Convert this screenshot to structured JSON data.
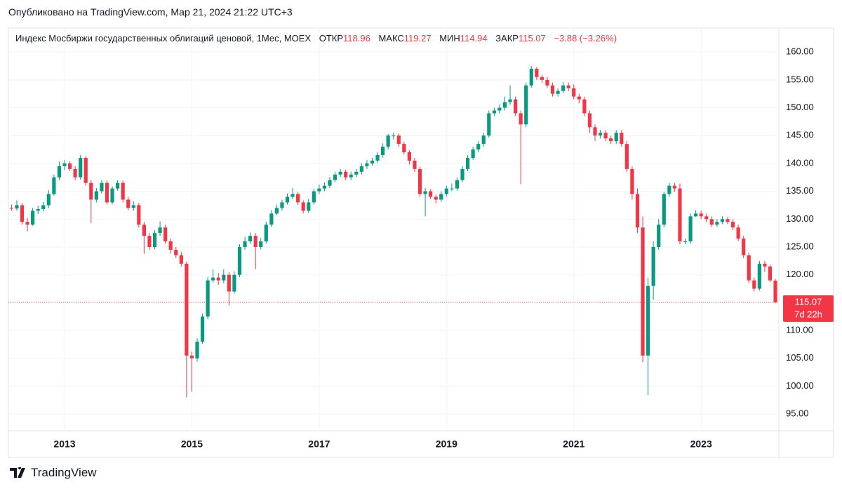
{
  "published": "Опубликовано на TradingView.com, Мар 21, 2024 21:22 UTC+3",
  "brand": "TradingView",
  "chart_data": {
    "type": "candlestick",
    "title": "Индекс Мосбиржи государственных облигаций ценовой, 1Мес, MOEX",
    "legend": {
      "open_label": "ОТКР",
      "high_label": "МАКС",
      "low_label": "МИН",
      "close_label": "ЗАКР",
      "change": "−3.88 (−3.26%)"
    },
    "countdown": "7d 22h",
    "up_color": "#089981",
    "down_color": "#f23645",
    "grid": true,
    "ylim": [
      92,
      164.3
    ],
    "yticks": [
      {
        "value": 95,
        "label": "95.00"
      },
      {
        "value": 100,
        "label": "100.00"
      },
      {
        "value": 105,
        "label": "105.00"
      },
      {
        "value": 110,
        "label": "110.00"
      },
      {
        "value": 115,
        "label": "115.00"
      },
      {
        "value": 120,
        "label": "120.00"
      },
      {
        "value": 125,
        "label": "125.00"
      },
      {
        "value": 130,
        "label": "130.00"
      },
      {
        "value": 135,
        "label": "135.00"
      },
      {
        "value": 140,
        "label": "140.00"
      },
      {
        "value": 145,
        "label": "145.00"
      },
      {
        "value": 150,
        "label": "150.00"
      },
      {
        "value": 155,
        "label": "155.00"
      },
      {
        "value": 160,
        "label": "160.00"
      }
    ],
    "categories": [
      null,
      null,
      null,
      null,
      null,
      null,
      null,
      null,
      null,
      null,
      "2013",
      null,
      null,
      null,
      null,
      null,
      null,
      null,
      null,
      null,
      null,
      null,
      null,
      null,
      null,
      null,
      null,
      null,
      null,
      null,
      null,
      null,
      null,
      null,
      "2015",
      null,
      null,
      null,
      null,
      null,
      null,
      null,
      null,
      null,
      null,
      null,
      null,
      null,
      null,
      null,
      null,
      null,
      null,
      null,
      null,
      null,
      null,
      null,
      "2017",
      null,
      null,
      null,
      null,
      null,
      null,
      null,
      null,
      null,
      null,
      null,
      null,
      null,
      null,
      null,
      null,
      null,
      null,
      null,
      null,
      null,
      null,
      null,
      "2019",
      null,
      null,
      null,
      null,
      null,
      null,
      null,
      null,
      null,
      null,
      null,
      null,
      null,
      null,
      null,
      null,
      null,
      null,
      null,
      null,
      null,
      null,
      null,
      "2021",
      null,
      null,
      null,
      null,
      null,
      null,
      null,
      null,
      null,
      null,
      null,
      null,
      null,
      null,
      null,
      null,
      null,
      null,
      null,
      null,
      null,
      null,
      null,
      "2023",
      null,
      null,
      null,
      null,
      null,
      null,
      null,
      null,
      null,
      null,
      null,
      null,
      null,
      null
    ],
    "open": [
      132.0,
      131.9,
      132.5,
      129.5,
      129.0,
      131.5,
      131.8,
      132.5,
      134.5,
      137.5,
      139.5,
      140.0,
      139.0,
      137.5,
      141.0,
      136.5,
      133.5,
      135.0,
      136.5,
      133.0,
      135.5,
      136.5,
      133.5,
      132.0,
      132.5,
      129.0,
      127.0,
      125.0,
      127.5,
      128.5,
      126.0,
      124.5,
      123.5,
      122.0,
      105.5,
      105.0,
      108.0,
      112.5,
      119.0,
      119.5,
      119.0,
      120.0,
      117.0,
      120.0,
      125.0,
      126.0,
      127.0,
      125.0,
      126.0,
      129.0,
      131.0,
      132.0,
      133.0,
      134.0,
      134.5,
      133.0,
      131.5,
      133.0,
      135.0,
      135.5,
      136.0,
      137.0,
      138.0,
      138.5,
      137.5,
      138.0,
      138.5,
      139.5,
      140.0,
      140.5,
      141.5,
      143.0,
      145.0,
      145.0,
      143.5,
      142.0,
      140.5,
      139.0,
      134.5,
      135.0,
      134.0,
      133.5,
      134.5,
      135.5,
      135.5,
      137.0,
      139.0,
      141.0,
      142.5,
      143.5,
      145.0,
      149.0,
      149.5,
      150.0,
      151.0,
      151.5,
      149.0,
      147.0,
      154.0,
      157.0,
      155.5,
      155.0,
      154.0,
      152.5,
      153.0,
      154.0,
      153.5,
      152.0,
      151.5,
      149.0,
      146.5,
      145.0,
      145.5,
      144.5,
      144.0,
      145.5,
      143.5,
      139.0,
      134.5,
      128.5,
      105.5,
      118.0,
      125.0,
      129.0,
      134.5,
      136.0,
      135.5,
      126.0,
      126.0,
      130.5,
      131.0,
      130.5,
      130.0,
      129.0,
      129.5,
      130.0,
      129.5,
      128.5,
      126.5,
      123.5,
      119.0,
      117.5,
      122.0,
      121.5,
      118.96
    ],
    "high": [
      132.6,
      133.4,
      132.9,
      130.2,
      132.0,
      132.4,
      133.1,
      135.2,
      138.0,
      140.3,
      140.6,
      140.4,
      139.5,
      141.5,
      141.3,
      137.0,
      135.6,
      137.0,
      136.9,
      135.9,
      137.0,
      136.9,
      134.0,
      133.2,
      132.9,
      129.5,
      127.5,
      128.0,
      129.6,
      129.0,
      126.5,
      125.0,
      124.1,
      122.4,
      106.2,
      108.6,
      113.0,
      119.6,
      121.0,
      120.3,
      121.0,
      120.5,
      120.6,
      125.5,
      126.8,
      127.6,
      127.5,
      126.6,
      129.5,
      131.6,
      132.6,
      133.5,
      134.6,
      135.6,
      134.9,
      133.4,
      133.6,
      135.5,
      136.2,
      136.6,
      137.6,
      138.5,
      139.0,
      138.9,
      138.5,
      139.0,
      140.0,
      140.6,
      141.0,
      142.0,
      143.6,
      145.3,
      145.5,
      145.4,
      143.9,
      142.4,
      141.0,
      139.4,
      135.6,
      135.4,
      134.4,
      135.0,
      136.0,
      136.4,
      137.5,
      139.5,
      141.5,
      143.0,
      144.0,
      145.5,
      149.5,
      150.0,
      150.6,
      152.0,
      154.0,
      152.0,
      149.5,
      154.5,
      157.5,
      157.3,
      155.9,
      155.5,
      154.5,
      153.5,
      154.6,
      154.5,
      154.2,
      152.5,
      152.0,
      149.5,
      147.0,
      146.0,
      146.0,
      145.0,
      146.0,
      146.0,
      144.0,
      139.5,
      135.5,
      130.5,
      119.5,
      126.0,
      130.0,
      134.9,
      136.5,
      136.5,
      136.4,
      126.5,
      131.0,
      131.6,
      131.5,
      131.0,
      130.5,
      130.0,
      130.5,
      130.4,
      130.0,
      129.0,
      127.0,
      124.0,
      119.5,
      122.5,
      122.5,
      121.8,
      119.27
    ],
    "low": [
      131.5,
      131.5,
      129.0,
      127.8,
      128.8,
      130.9,
      131.4,
      132.0,
      134.2,
      137.0,
      138.8,
      138.6,
      137.0,
      137.1,
      136.0,
      129.3,
      133.0,
      134.6,
      132.6,
      132.7,
      135.1,
      133.0,
      131.6,
      131.5,
      128.5,
      123.8,
      124.5,
      124.6,
      127.0,
      125.6,
      123.8,
      123.0,
      121.5,
      98.0,
      99.0,
      104.4,
      107.6,
      112.0,
      118.6,
      118.2,
      118.5,
      114.5,
      116.6,
      119.6,
      124.5,
      125.5,
      121.0,
      124.6,
      125.6,
      128.6,
      130.7,
      131.5,
      132.6,
      133.6,
      132.5,
      131.0,
      131.1,
      132.6,
      134.5,
      135.0,
      135.6,
      136.6,
      137.6,
      137.0,
      137.0,
      137.6,
      138.0,
      139.0,
      139.6,
      140.1,
      141.0,
      142.5,
      144.3,
      143.0,
      141.6,
      139.8,
      138.5,
      134.0,
      130.5,
      133.6,
      132.8,
      133.1,
      134.0,
      135.0,
      135.1,
      136.6,
      138.6,
      140.6,
      142.0,
      143.0,
      144.6,
      148.5,
      149.0,
      149.5,
      150.5,
      148.5,
      136.3,
      146.5,
      153.6,
      155.0,
      154.5,
      153.6,
      152.0,
      152.0,
      152.6,
      153.0,
      151.5,
      150.8,
      148.5,
      145.5,
      144.0,
      144.5,
      144.0,
      143.5,
      143.5,
      143.0,
      138.5,
      133.5,
      127.5,
      104.3,
      98.4,
      115.5,
      124.5,
      128.5,
      134.0,
      134.9,
      125.5,
      125.5,
      125.6,
      130.4,
      130.0,
      129.5,
      128.6,
      128.6,
      129.1,
      129.1,
      128.0,
      126.0,
      123.0,
      118.5,
      117.0,
      117.2,
      120.5,
      118.7,
      114.94
    ],
    "close": [
      131.9,
      132.5,
      129.5,
      129.0,
      131.5,
      131.8,
      132.5,
      134.5,
      137.5,
      139.5,
      140.0,
      139.0,
      137.5,
      141.0,
      136.5,
      133.5,
      135.0,
      136.5,
      133.0,
      135.5,
      136.5,
      133.5,
      132.0,
      132.5,
      129.0,
      127.0,
      125.0,
      127.5,
      128.5,
      126.0,
      124.5,
      123.5,
      122.0,
      105.5,
      105.0,
      108.0,
      112.5,
      119.0,
      119.5,
      119.0,
      120.0,
      117.0,
      120.0,
      125.0,
      126.0,
      127.0,
      125.0,
      126.0,
      129.0,
      131.0,
      132.0,
      133.0,
      134.0,
      134.5,
      133.0,
      131.5,
      133.0,
      135.0,
      135.5,
      136.0,
      137.0,
      138.0,
      138.5,
      137.5,
      138.0,
      138.5,
      139.5,
      140.0,
      140.5,
      141.5,
      143.0,
      145.0,
      145.0,
      143.5,
      142.0,
      140.5,
      139.0,
      134.5,
      135.0,
      134.0,
      133.5,
      134.5,
      135.5,
      135.5,
      137.0,
      139.0,
      141.0,
      142.5,
      143.5,
      145.0,
      149.0,
      149.5,
      150.0,
      151.0,
      151.5,
      149.0,
      147.0,
      154.0,
      157.0,
      155.5,
      155.0,
      154.0,
      152.5,
      153.0,
      154.0,
      153.5,
      152.0,
      151.5,
      149.0,
      146.5,
      145.0,
      145.5,
      144.5,
      144.0,
      145.5,
      143.5,
      139.0,
      134.5,
      128.5,
      105.5,
      118.0,
      125.0,
      129.0,
      134.5,
      136.0,
      135.5,
      126.0,
      126.0,
      130.5,
      131.0,
      130.5,
      130.0,
      129.0,
      129.5,
      130.0,
      129.5,
      128.5,
      126.5,
      123.5,
      119.0,
      117.5,
      122.0,
      121.5,
      119.0,
      115.07
    ]
  }
}
